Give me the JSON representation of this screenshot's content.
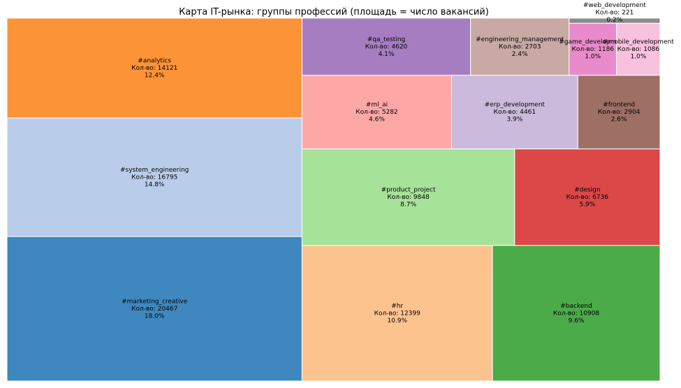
{
  "chart_data": {
    "type": "treemap",
    "title": "Карта IT-рынка: группы профессий (площадь = число вакансий)",
    "count_prefix": "Кол-во: ",
    "items": [
      {
        "name": "#marketing_creative",
        "count_label": "Кол-во: 20467",
        "pct_label": "18.0%",
        "value": 20467,
        "color": "#3f88bf"
      },
      {
        "name": "#system_engineering",
        "count_label": "Кол-во: 16795",
        "pct_label": "14.8%",
        "value": 16795,
        "color": "#b9cdea"
      },
      {
        "name": "#analytics",
        "count_label": "Кол-во: 14121",
        "pct_label": "12.4%",
        "value": 14121,
        "color": "#fd9337"
      },
      {
        "name": "#hr",
        "count_label": "Кол-во: 12399",
        "pct_label": "10.9%",
        "value": 12399,
        "color": "#fdc38f"
      },
      {
        "name": "#backend",
        "count_label": "Кол-во: 10908",
        "pct_label": "9.6%",
        "value": 10908,
        "color": "#4bab49"
      },
      {
        "name": "#product_project",
        "count_label": "Кол-во: 9848",
        "pct_label": "8.7%",
        "value": 9848,
        "color": "#a6e298"
      },
      {
        "name": "#design",
        "count_label": "Кол-во: 6736",
        "pct_label": "5.9%",
        "value": 6736,
        "color": "#dc4848"
      },
      {
        "name": "#ml_ai",
        "count_label": "Кол-во: 5282",
        "pct_label": "4.6%",
        "value": 5282,
        "color": "#fda8a6"
      },
      {
        "name": "#qa_testing",
        "count_label": "Кол-во: 4620",
        "pct_label": "4.1%",
        "value": 4620,
        "color": "#a77dc2"
      },
      {
        "name": "#erp_development",
        "count_label": "Кол-во: 4461",
        "pct_label": "3.9%",
        "value": 4461,
        "color": "#cbbadb"
      },
      {
        "name": "#frontend",
        "count_label": "Кол-во: 2904",
        "pct_label": "2.6%",
        "value": 2904,
        "color": "#9d6f65"
      },
      {
        "name": "#engineering_management",
        "count_label": "Кол-во: 2703",
        "pct_label": "2.4%",
        "value": 2703,
        "color": "#c8a9a3"
      },
      {
        "name": "#game_development",
        "count_label": "Кол-во: 1186",
        "pct_label": "1.0%",
        "value": 1186,
        "color": "#e98bcb"
      },
      {
        "name": "#mobile_development",
        "count_label": "Кол-во: 1086",
        "pct_label": "1.0%",
        "value": 1086,
        "color": "#f9c2dc"
      },
      {
        "name": "#web_development",
        "count_label": "Кол-во: 221",
        "pct_label": "0.2%",
        "value": 221,
        "color": "#8c8c8c"
      }
    ]
  }
}
